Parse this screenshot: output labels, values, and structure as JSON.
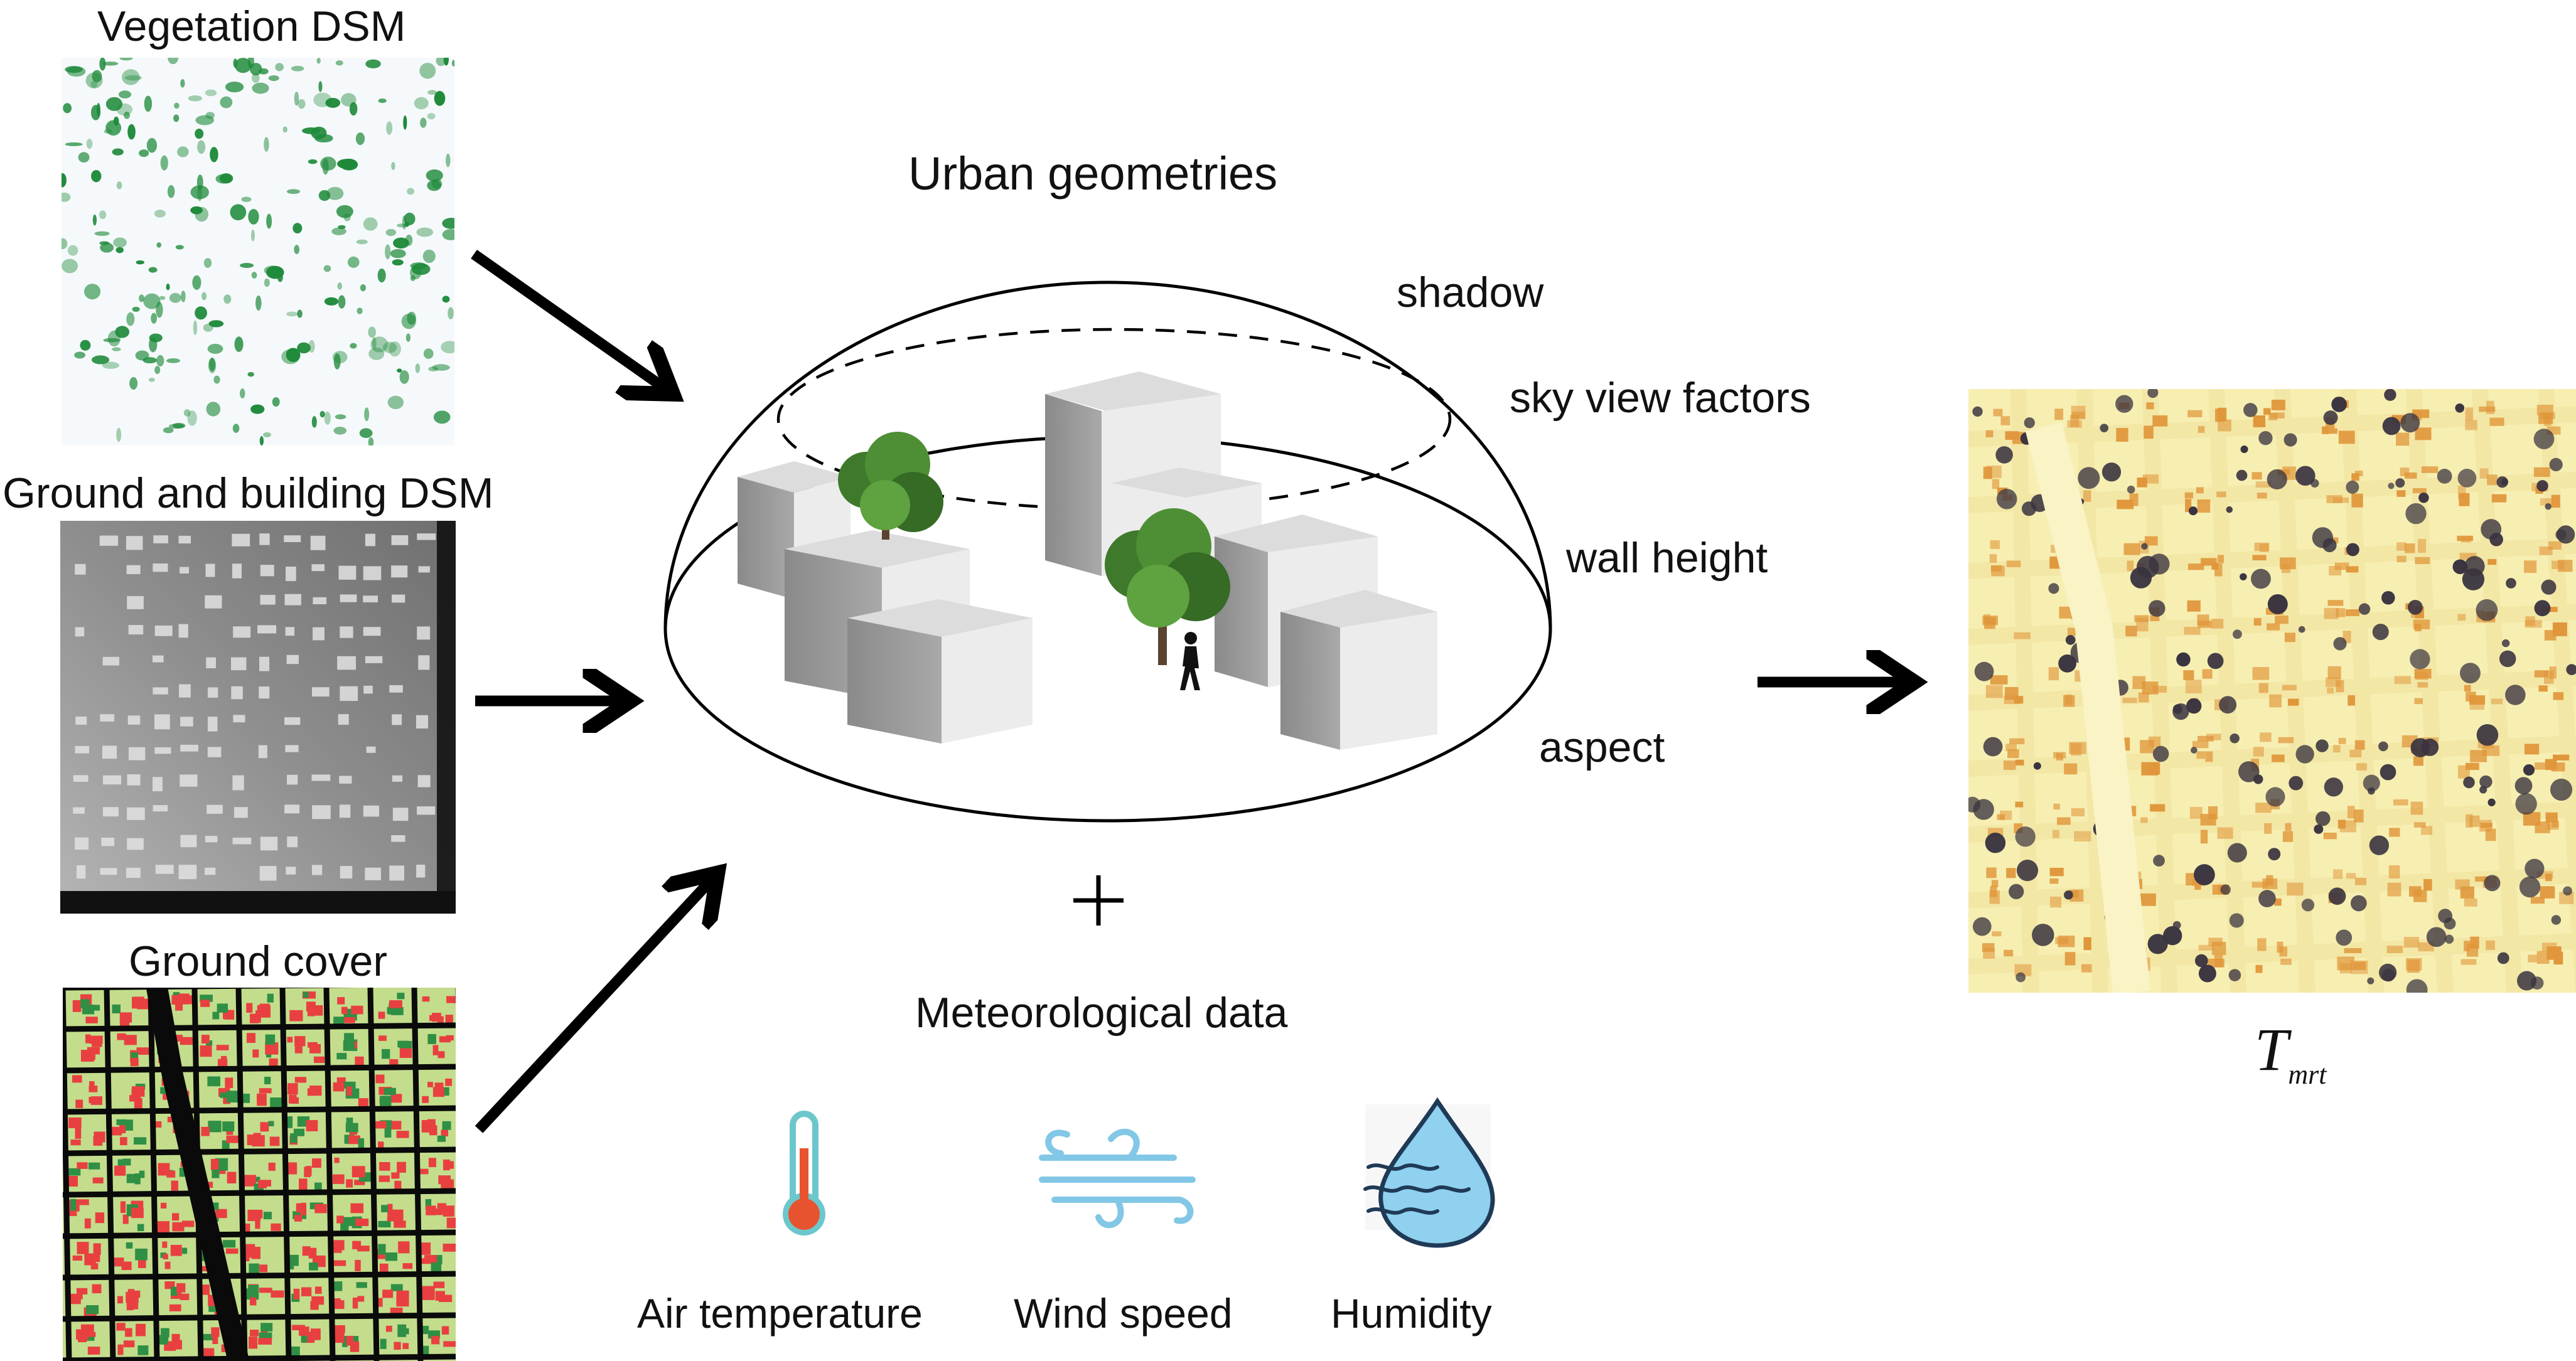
{
  "inputs": {
    "vegetation_title": "Vegetation DSM",
    "ground_building_title": "Ground and building DSM",
    "ground_cover_title": "Ground cover"
  },
  "center": {
    "title": "Urban geometries",
    "factors": [
      "shadow",
      "sky view factors",
      "wall height",
      "aspect"
    ],
    "plus": "+"
  },
  "meteorological": {
    "title": "Meteorological data",
    "items": [
      {
        "label": "Air temperature",
        "icon": "thermometer-icon"
      },
      {
        "label": "Wind speed",
        "icon": "wind-icon"
      },
      {
        "label": "Humidity",
        "icon": "water-drop-icon"
      }
    ]
  },
  "output": {
    "symbol": "T",
    "subscript": "mrt"
  },
  "colors": {
    "vegetation": "#1e8a3a",
    "building_fill": "#e84040",
    "grass": "#c3dd8c",
    "tmrt_base": "#f7efb2",
    "tmrt_shadow": "#3a3440",
    "tmrt_edge": "#e0963a"
  }
}
